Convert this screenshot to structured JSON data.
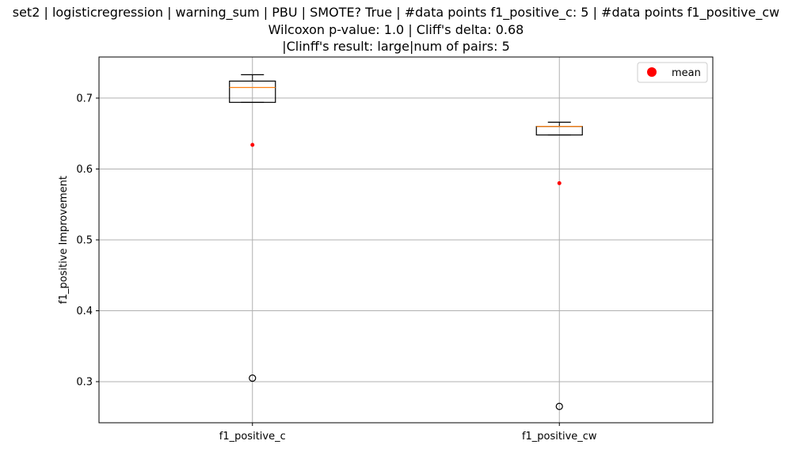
{
  "chart_data": {
    "type": "box",
    "title_lines": [
      "set2 | logisticregression | warning_sum | PBU | SMOTE? True | #data points f1_positive_c: 5 | #data points f1_positive_cw",
      "Wilcoxon p-value: 1.0 | Cliff's delta: 0.68",
      "|Clinff's result: large|num of pairs: 5"
    ],
    "xlabel": "",
    "ylabel": "f1_positive Improvement",
    "ylim": [
      0.242,
      0.758
    ],
    "yticks": [
      0.3,
      0.4,
      0.5,
      0.6,
      0.7
    ],
    "ytick_labels": [
      "0.3",
      "0.4",
      "0.5",
      "0.6",
      "0.7"
    ],
    "grid": true,
    "legend": {
      "position": "top-right",
      "entries": [
        {
          "label": "mean",
          "color": "#ff0000"
        }
      ]
    },
    "categories": [
      "f1_positive_c",
      "f1_positive_cw"
    ],
    "boxes": [
      {
        "name": "f1_positive_c",
        "whislo": 0.694,
        "q1": 0.694,
        "med": 0.715,
        "q3": 0.724,
        "whishi": 0.733,
        "fliers": [
          0.305
        ],
        "mean": 0.634
      },
      {
        "name": "f1_positive_cw",
        "whislo": 0.648,
        "q1": 0.648,
        "med": 0.66,
        "q3": 0.66,
        "whishi": 0.666,
        "fliers": [
          0.265
        ],
        "mean": 0.58
      }
    ],
    "colors": {
      "box": "#000000",
      "median": "#ff7f0e",
      "mean": "#ff0000",
      "grid": "#b0b0b0",
      "flier": "#000000"
    }
  }
}
